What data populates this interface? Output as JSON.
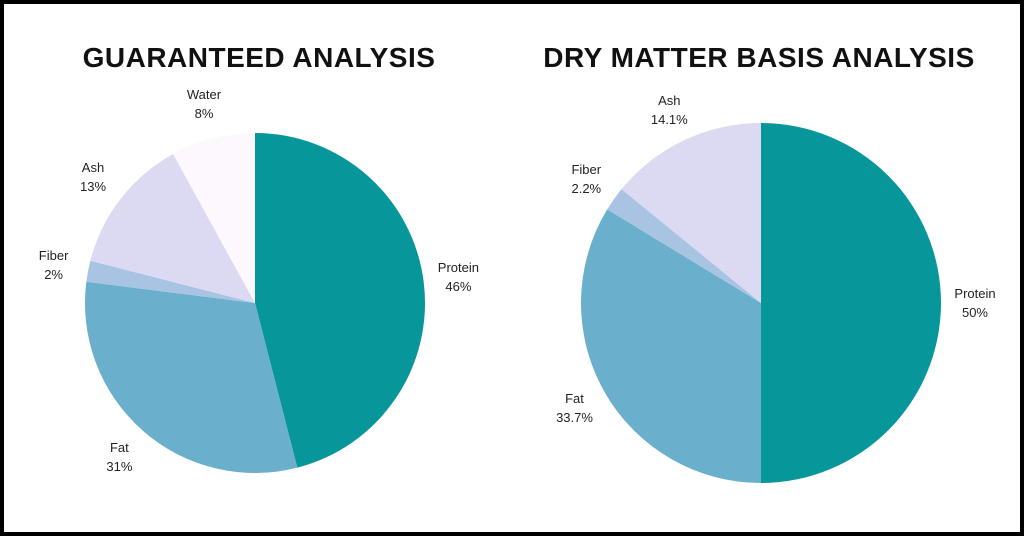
{
  "chart_data": [
    {
      "type": "pie",
      "title": "GUARANTEED ANALYSIS",
      "slices": [
        {
          "name": "Protein",
          "label": "46%",
          "value": 46,
          "color": "#07979b"
        },
        {
          "name": "Fat",
          "label": "31%",
          "value": 31,
          "color": "#6aafcc"
        },
        {
          "name": "Fiber",
          "label": "2%",
          "value": 2,
          "color": "#a8c4e2"
        },
        {
          "name": "Ash",
          "label": "13%",
          "value": 13,
          "color": "#dcdaf2"
        },
        {
          "name": "Water",
          "label": "8%",
          "value": 8,
          "color": "#fdf8fd"
        }
      ]
    },
    {
      "type": "pie",
      "title": "DRY MATTER BASIS ANALYSIS",
      "slices": [
        {
          "name": "Protein",
          "label": "50%",
          "value": 50,
          "color": "#07979b"
        },
        {
          "name": "Fat",
          "label": "33.7%",
          "value": 33.7,
          "color": "#6aafcc"
        },
        {
          "name": "Fiber",
          "label": "2.2%",
          "value": 2.2,
          "color": "#a8c4e2"
        },
        {
          "name": "Ash",
          "label": "14.1%",
          "value": 14.1,
          "color": "#dcdaf2"
        }
      ]
    }
  ]
}
